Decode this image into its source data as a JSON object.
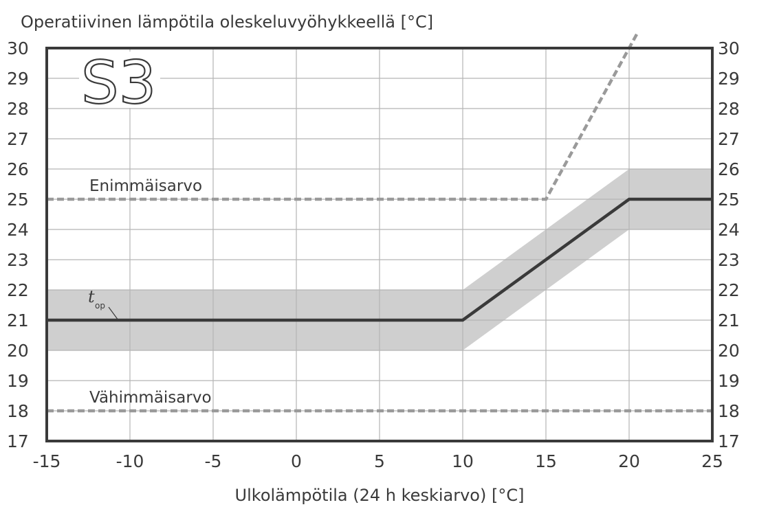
{
  "chart_data": {
    "type": "line",
    "title": "Operatiivinen lämpötila oleskeluvyöhykkeellä [°C]",
    "chart_id": "S3",
    "xlabel": "Ulkolämpötila (24 h keskiarvo) [°C]",
    "ylabel": "",
    "xlim": [
      -15,
      25
    ],
    "ylim": [
      17,
      30
    ],
    "x_ticks": [
      -15,
      -10,
      -5,
      0,
      5,
      10,
      15,
      20,
      25
    ],
    "y_ticks": [
      17,
      18,
      19,
      20,
      21,
      22,
      23,
      24,
      25,
      26,
      27,
      28,
      29,
      30
    ],
    "grid": true,
    "band": {
      "x": [
        -15,
        10,
        20,
        25
      ],
      "lower": [
        20,
        20,
        24,
        24
      ],
      "upper": [
        22,
        22,
        26,
        26
      ]
    },
    "series": [
      {
        "name": "t",
        "name_subscript": "op",
        "style": "solid",
        "x": [
          -15,
          10,
          20,
          25
        ],
        "y": [
          21,
          21,
          25,
          25
        ]
      },
      {
        "name": "Enimmäisarvo",
        "style": "dashed",
        "x": [
          -15,
          15,
          20.5
        ],
        "y": [
          25,
          25,
          30.5
        ]
      },
      {
        "name": "Vähimmäisarvo",
        "style": "dashed",
        "x": [
          -15,
          25
        ],
        "y": [
          18,
          18
        ]
      }
    ],
    "colors": {
      "band": "#cfcfcf",
      "line": "#3a3a3a",
      "dashed": "#9a9a9a",
      "grid": "#b5b5b5",
      "frame": "#3a3a3a",
      "text": "#3a3a3a"
    }
  }
}
